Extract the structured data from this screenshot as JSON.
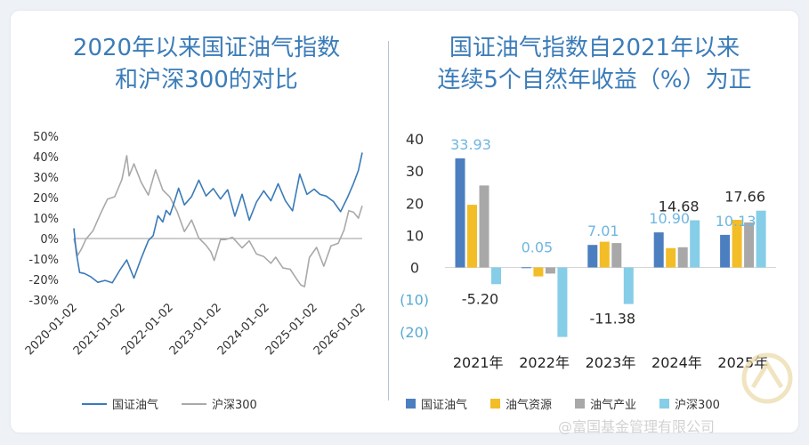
{
  "chart_data": [
    {
      "type": "line",
      "title": "2020年以来国证油气指数和沪深300的对比",
      "title_lines": [
        "2020年以来国证油气指数",
        "和沪深300的对比"
      ],
      "xlabel": "",
      "ylabel": "",
      "x_ticks": [
        "2020-01-02",
        "2021-01-02",
        "2022-01-02",
        "2023-01-02",
        "2024-01-02",
        "2025-01-02",
        "2026-01-02"
      ],
      "y_ticks": [
        "50%",
        "40%",
        "30%",
        "20%",
        "10%",
        "0%",
        "-10%",
        "-20%",
        "-30%"
      ],
      "ylim": [
        -30,
        50
      ],
      "xlim": [
        2020.0,
        2026.0
      ],
      "legend_position": "bottom",
      "series": [
        {
          "name": "国证油气",
          "color": "#3a7ab8",
          "x": [
            2020.0,
            2020.05,
            2020.12,
            2020.22,
            2020.35,
            2020.5,
            2020.65,
            2020.8,
            2020.95,
            2021.1,
            2021.25,
            2021.4,
            2021.55,
            2021.65,
            2021.75,
            2021.85,
            2021.92,
            2022.0,
            2022.08,
            2022.18,
            2022.3,
            2022.45,
            2022.6,
            2022.75,
            2022.9,
            2023.05,
            2023.2,
            2023.35,
            2023.5,
            2023.65,
            2023.8,
            2023.95,
            2024.1,
            2024.25,
            2024.4,
            2024.55,
            2024.7,
            2024.85,
            2025.0,
            2025.12,
            2025.25,
            2025.4,
            2025.55,
            2025.7,
            2025.82,
            2025.92,
            2026.0
          ],
          "y": [
            5,
            -8,
            -15,
            -18,
            -19,
            -20,
            -22,
            -21,
            -15,
            -12,
            -18,
            -10,
            -2,
            3,
            10,
            8,
            15,
            10,
            18,
            25,
            15,
            22,
            28,
            20,
            26,
            18,
            24,
            12,
            20,
            10,
            18,
            22,
            20,
            26,
            18,
            15,
            30,
            22,
            25,
            20,
            22,
            18,
            12,
            22,
            26,
            33,
            42
          ]
        },
        {
          "name": "沪深300",
          "color": "#a9a9a9",
          "x": [
            2020.0,
            2020.08,
            2020.16,
            2020.25,
            2020.4,
            2020.55,
            2020.7,
            2020.85,
            2021.0,
            2021.1,
            2021.15,
            2021.25,
            2021.4,
            2021.55,
            2021.7,
            2021.85,
            2022.0,
            2022.15,
            2022.3,
            2022.45,
            2022.6,
            2022.75,
            2022.85,
            2022.92,
            2023.05,
            2023.15,
            2023.3,
            2023.5,
            2023.65,
            2023.8,
            2023.95,
            2024.1,
            2024.2,
            2024.35,
            2024.5,
            2024.65,
            2024.72,
            2024.8,
            2024.9,
            2025.05,
            2025.2,
            2025.35,
            2025.5,
            2025.62,
            2025.72,
            2025.82,
            2025.92,
            2026.0
          ],
          "y": [
            0,
            -8,
            -4,
            -2,
            5,
            12,
            18,
            22,
            28,
            40,
            32,
            35,
            28,
            22,
            32,
            25,
            20,
            12,
            5,
            8,
            0,
            -2,
            -8,
            -10,
            0,
            -2,
            2,
            -5,
            -2,
            -6,
            -10,
            -12,
            -8,
            -16,
            -14,
            -20,
            -24,
            -22,
            -10,
            -5,
            -12,
            -5,
            -2,
            5,
            12,
            14,
            10,
            16
          ]
        }
      ]
    },
    {
      "type": "bar",
      "title": "国证油气指数自2021年以来连续5个自然年收益（%）为正",
      "title_lines": [
        "国证油气指数自2021年以来",
        "连续5个自然年收益（%）为正"
      ],
      "xlabel": "",
      "ylabel": "",
      "categories": [
        "2021年",
        "2022年",
        "2023年",
        "2024年",
        "2025年"
      ],
      "y_ticks": [
        "40",
        "30",
        "20",
        "10",
        "0",
        "(10)",
        "(20)"
      ],
      "ylim": [
        -22,
        40
      ],
      "legend_position": "bottom",
      "series": [
        {
          "name": "国证油气",
          "color": "#4c7fc0",
          "values": [
            33.93,
            0.05,
            7.01,
            10.9,
            10.13
          ]
        },
        {
          "name": "油气资源",
          "color": "#f3bd27",
          "values": [
            19.5,
            -2.8,
            8.0,
            6.0,
            14.8
          ]
        },
        {
          "name": "油气产业",
          "color": "#a8a8a8",
          "values": [
            25.5,
            -1.9,
            7.6,
            6.3,
            14.0
          ]
        },
        {
          "name": "沪深300",
          "color": "#86cde8",
          "values": [
            -5.2,
            -21.63,
            -11.38,
            14.68,
            17.66
          ]
        }
      ],
      "data_labels": [
        {
          "category": "2021年",
          "series": "国证油气",
          "text": "33.93",
          "style": "blue"
        },
        {
          "category": "2022年",
          "series": "国证油气",
          "text": "0.05",
          "style": "blue"
        },
        {
          "category": "2023年",
          "series": "国证油气",
          "text": "7.01",
          "style": "blue"
        },
        {
          "category": "2024年",
          "series": "国证油气",
          "text": "10.90",
          "style": "blue"
        },
        {
          "category": "2025年",
          "series": "国证油气",
          "text": "10.13",
          "style": "blue"
        },
        {
          "category": "2021年",
          "series": "沪深300",
          "text": "-5.20",
          "style": "dark"
        },
        {
          "category": "2023年",
          "series": "沪深300",
          "text": "-11.38",
          "style": "dark"
        },
        {
          "category": "2024年",
          "series": "沪深300",
          "text": "14.68",
          "style": "dark"
        },
        {
          "category": "2025年",
          "series": "沪深300",
          "text": "17.66",
          "style": "dark"
        }
      ]
    }
  ],
  "watermark": "@富国基金管理有限公司"
}
